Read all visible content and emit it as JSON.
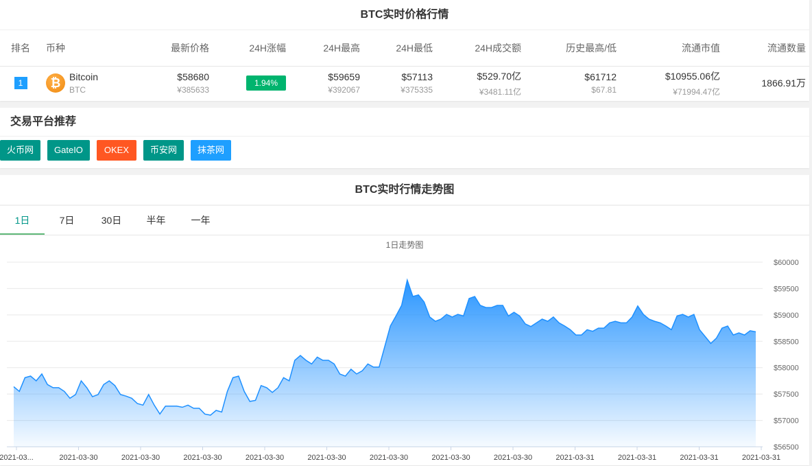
{
  "price_table": {
    "title": "BTC实时价格行情",
    "headers": [
      "排名",
      "币种",
      "最新价格",
      "24H涨幅",
      "24H最高",
      "24H最低",
      "24H成交额",
      "历史最高/低",
      "流通市值",
      "流通数量"
    ],
    "row": {
      "rank": "1",
      "name": "Bitcoin",
      "symbol": "BTC",
      "price_usd": "$58680",
      "price_cny": "¥385633",
      "change": "1.94%",
      "high_usd": "$59659",
      "high_cny": "¥392067",
      "low_usd": "$57113",
      "low_cny": "¥375335",
      "volume_usd": "$529.70亿",
      "volume_cny": "¥3481.11亿",
      "ath": "$61712",
      "atl": "$67.81",
      "mcap_usd": "$10955.06亿",
      "mcap_cny": "¥71994.47亿",
      "supply": "1866.91万"
    }
  },
  "platforms": {
    "title": "交易平台推荐",
    "items": [
      {
        "label": "火币网",
        "color": "#009688"
      },
      {
        "label": "GateIO",
        "color": "#009688"
      },
      {
        "label": "OKEX",
        "color": "#ff5722"
      },
      {
        "label": "币安网",
        "color": "#009688"
      },
      {
        "label": "抹茶网",
        "color": "#1e9fff"
      }
    ]
  },
  "trend": {
    "title": "BTC实时行情走势图",
    "tabs": [
      "1日",
      "7日",
      "30日",
      "半年",
      "一年"
    ],
    "active_tab": "1日"
  },
  "chart_data": {
    "type": "area",
    "title": "1日走势图",
    "ylim": [
      56500,
      60000
    ],
    "grid": true,
    "color": "#1e90ff",
    "y_ticks": [
      "$60000",
      "$59500",
      "$59000",
      "$58500",
      "$58000",
      "$57500",
      "$57000",
      "$56500"
    ],
    "x_ticks": [
      "2021-03...",
      "2021-03-30",
      "2021-03-30",
      "2021-03-30",
      "2021-03-30",
      "2021-03-30",
      "2021-03-30",
      "2021-03-30",
      "2021-03-30",
      "2021-03-31",
      "2021-03-31",
      "2021-03-31",
      "2021-03-31"
    ],
    "values": [
      57640,
      57550,
      57810,
      57840,
      57750,
      57880,
      57680,
      57620,
      57620,
      57550,
      57420,
      57490,
      57750,
      57620,
      57450,
      57490,
      57680,
      57750,
      57660,
      57490,
      57460,
      57420,
      57320,
      57290,
      57490,
      57290,
      57120,
      57270,
      57270,
      57270,
      57250,
      57290,
      57230,
      57230,
      57120,
      57100,
      57190,
      57160,
      57550,
      57810,
      57840,
      57550,
      57360,
      57380,
      57660,
      57620,
      57530,
      57620,
      57810,
      57750,
      58140,
      58230,
      58140,
      58070,
      58200,
      58140,
      58140,
      58070,
      57880,
      57840,
      57970,
      57880,
      57940,
      58070,
      58010,
      58010,
      58400,
      58790,
      58980,
      59180,
      59660,
      59350,
      59380,
      59245,
      58960,
      58880,
      58920,
      59010,
      58960,
      59010,
      58980,
      59310,
      59350,
      59180,
      59140,
      59140,
      59180,
      59180,
      58980,
      59050,
      58980,
      58830,
      58780,
      58850,
      58920,
      58880,
      58960,
      58850,
      58790,
      58720,
      58620,
      58620,
      58720,
      58690,
      58750,
      58750,
      58850,
      58880,
      58850,
      58850,
      58960,
      59170,
      59010,
      58920,
      58880,
      58850,
      58790,
      58720,
      58980,
      59010,
      58960,
      59010,
      58720,
      58590,
      58460,
      58560,
      58750,
      58790,
      58620,
      58660,
      58620,
      58700,
      58680
    ]
  }
}
